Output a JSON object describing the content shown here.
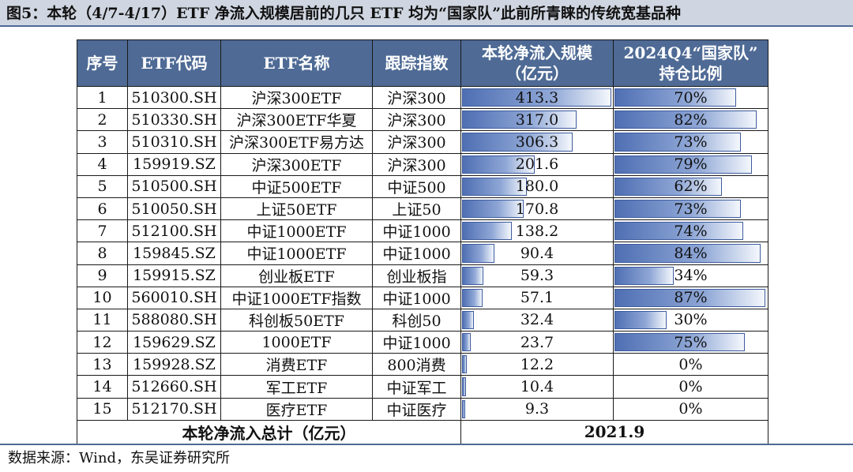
{
  "title": "图5：本轮（4/7-4/17）ETF 净流入规模居前的几只 ETF 均为“国家队”此前所青睐的传统宽基品种",
  "headers": {
    "idx": "序号",
    "code": "ETF代码",
    "name": "ETF名称",
    "index": "跟踪指数",
    "flow_line1": "本轮净流入规模",
    "flow_line2": "（亿元）",
    "hold_line1": "2024Q4“国家队”",
    "hold_line2": "持仓比例"
  },
  "rows": [
    {
      "idx": "1",
      "code": "510300.SH",
      "name": "沪深300ETF",
      "index": "沪深300",
      "flow": "413.3",
      "hold": "70%"
    },
    {
      "idx": "2",
      "code": "510330.SH",
      "name": "沪深300ETF华夏",
      "index": "沪深300",
      "flow": "317.0",
      "hold": "82%"
    },
    {
      "idx": "3",
      "code": "510310.SH",
      "name": "沪深300ETF易方达",
      "index": "沪深300",
      "flow": "306.3",
      "hold": "73%"
    },
    {
      "idx": "4",
      "code": "159919.SZ",
      "name": "沪深300ETF",
      "index": "沪深300",
      "flow": "201.6",
      "hold": "79%"
    },
    {
      "idx": "5",
      "code": "510500.SH",
      "name": "中证500ETF",
      "index": "中证500",
      "flow": "180.0",
      "hold": "62%"
    },
    {
      "idx": "6",
      "code": "510050.SH",
      "name": "上证50ETF",
      "index": "上证50",
      "flow": "170.8",
      "hold": "73%"
    },
    {
      "idx": "7",
      "code": "512100.SH",
      "name": "中证1000ETF",
      "index": "中证1000",
      "flow": "138.2",
      "hold": "74%"
    },
    {
      "idx": "8",
      "code": "159845.SZ",
      "name": "中证1000ETF",
      "index": "中证1000",
      "flow": "90.4",
      "hold": "84%"
    },
    {
      "idx": "9",
      "code": "159915.SZ",
      "name": "创业板ETF",
      "index": "创业板指",
      "flow": "59.3",
      "hold": "34%"
    },
    {
      "idx": "10",
      "code": "560010.SH",
      "name": "中证1000ETF指数",
      "index": "中证1000",
      "flow": "57.1",
      "hold": "87%"
    },
    {
      "idx": "11",
      "code": "588080.SH",
      "name": "科创板50ETF",
      "index": "科创50",
      "flow": "32.4",
      "hold": "30%"
    },
    {
      "idx": "12",
      "code": "159629.SZ",
      "name": "1000ETF",
      "index": "中证1000",
      "flow": "23.7",
      "hold": "75%"
    },
    {
      "idx": "13",
      "code": "159928.SZ",
      "name": "消费ETF",
      "index": "800消费",
      "flow": "12.2",
      "hold": "0%"
    },
    {
      "idx": "14",
      "code": "512660.SH",
      "name": "军工ETF",
      "index": "中证军工",
      "flow": "10.4",
      "hold": "0%"
    },
    {
      "idx": "15",
      "code": "512170.SH",
      "name": "医疗ETF",
      "index": "中证医疗",
      "flow": "9.3",
      "hold": "0%"
    }
  ],
  "total": {
    "label": "本轮净流入总计（亿元）",
    "value": "2021.9"
  },
  "source": "数据来源：Wind，东吴证券研究所",
  "colors": {
    "header_bg": "#4e6a95",
    "bar": "#4f6fb3"
  }
}
